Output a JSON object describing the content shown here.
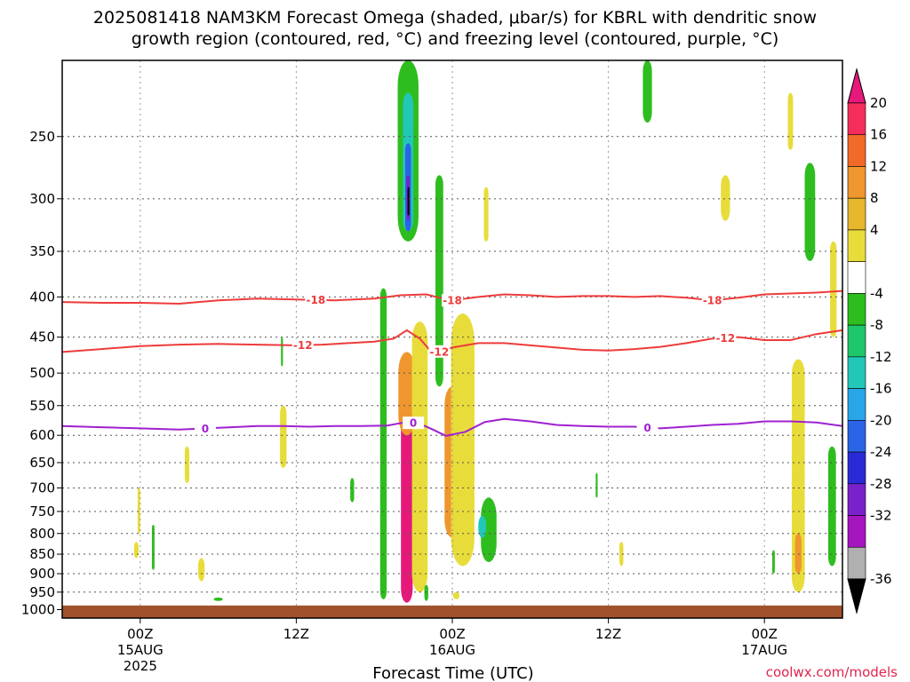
{
  "title_line1": "2025081418 NAM3KM Forecast Omega (shaded, μbar/s) for KBRL with dendritic snow",
  "title_line2": "growth region (contoured, red, °C) and freezing level (contoured, purple, °C)",
  "credit": "coolwx.com/models",
  "chart_data": {
    "type": "heatmap",
    "xlabel": "Forecast Time (UTC)",
    "x_ticks": [
      {
        "hour": 6,
        "lines": [
          "00Z",
          "15AUG",
          "2025"
        ]
      },
      {
        "hour": 18,
        "lines": [
          "12Z"
        ]
      },
      {
        "hour": 30,
        "lines": [
          "00Z",
          "16AUG"
        ]
      },
      {
        "hour": 42,
        "lines": [
          "12Z"
        ]
      },
      {
        "hour": 54,
        "lines": [
          "00Z",
          "17AUG"
        ]
      }
    ],
    "x_range_hours": [
      0,
      60
    ],
    "y_ticks": [
      250,
      300,
      350,
      400,
      450,
      500,
      550,
      600,
      650,
      700,
      750,
      800,
      850,
      900,
      950,
      1000
    ],
    "y_range_mb": [
      200,
      1025
    ],
    "grid": true,
    "colorbar": {
      "labels": [
        "20",
        "16",
        "12",
        "8",
        "4",
        "-4",
        "-8",
        "-12",
        "-16",
        "-20",
        "-24",
        "-28",
        "-32",
        "-36"
      ],
      "colors": [
        "#f52d5b",
        "#f26a29",
        "#f0962e",
        "#e6b62c",
        "#e8dc3a",
        "#ffffff",
        "#2ebd1f",
        "#1fc76b",
        "#22c7b8",
        "#29a6e8",
        "#2b64e6",
        "#2a2bd6",
        "#7a22c9",
        "#a516bf",
        "#b0b0b0"
      ],
      "top_arrow_color": "#e6197a",
      "bottom_arrow_color": "#000000"
    },
    "contours": [
      {
        "label": "-18",
        "color": "#ee3b3b",
        "label_positions_hours": [
          19.5,
          30,
          50
        ],
        "points": [
          [
            0,
            406
          ],
          [
            3,
            407
          ],
          [
            6,
            407
          ],
          [
            9,
            408
          ],
          [
            12,
            404
          ],
          [
            15,
            402
          ],
          [
            18,
            403
          ],
          [
            21,
            404
          ],
          [
            24,
            402
          ],
          [
            26,
            398
          ],
          [
            28,
            397
          ],
          [
            29,
            401
          ],
          [
            30,
            404
          ],
          [
            32,
            400
          ],
          [
            34,
            397
          ],
          [
            36,
            398
          ],
          [
            38,
            400
          ],
          [
            40,
            399
          ],
          [
            42,
            399
          ],
          [
            44,
            400
          ],
          [
            46,
            399
          ],
          [
            48,
            401
          ],
          [
            50,
            404
          ],
          [
            52,
            401
          ],
          [
            54,
            397
          ],
          [
            56,
            396
          ],
          [
            58,
            395
          ],
          [
            60,
            393
          ]
        ]
      },
      {
        "label": "-12",
        "color": "#ee3b3b",
        "label_positions_hours": [
          18.5,
          29,
          51
        ],
        "points": [
          [
            0,
            470
          ],
          [
            3,
            466
          ],
          [
            6,
            462
          ],
          [
            9,
            460
          ],
          [
            12,
            459
          ],
          [
            15,
            460
          ],
          [
            18,
            461
          ],
          [
            20,
            460
          ],
          [
            22,
            458
          ],
          [
            24,
            456
          ],
          [
            25.5,
            452
          ],
          [
            26.5,
            441
          ],
          [
            27.5,
            452
          ],
          [
            28.5,
            472
          ],
          [
            30,
            464
          ],
          [
            32,
            458
          ],
          [
            34,
            458
          ],
          [
            36,
            461
          ],
          [
            38,
            464
          ],
          [
            40,
            467
          ],
          [
            42,
            468
          ],
          [
            44,
            466
          ],
          [
            46,
            463
          ],
          [
            48,
            458
          ],
          [
            50,
            452
          ],
          [
            52,
            450
          ],
          [
            54,
            454
          ],
          [
            56,
            454
          ],
          [
            58,
            446
          ],
          [
            60,
            441
          ]
        ]
      },
      {
        "label": "0",
        "color": "#a020d0",
        "label_positions_hours": [
          11,
          27,
          45
        ],
        "points": [
          [
            0,
            584
          ],
          [
            3,
            586
          ],
          [
            6,
            588
          ],
          [
            9,
            590
          ],
          [
            11,
            588
          ],
          [
            13,
            586
          ],
          [
            15,
            584
          ],
          [
            17,
            584
          ],
          [
            19,
            585
          ],
          [
            21,
            584
          ],
          [
            23,
            584
          ],
          [
            25,
            583
          ],
          [
            26.5,
            577
          ],
          [
            27.5,
            580
          ],
          [
            28.5,
            590
          ],
          [
            29.5,
            601
          ],
          [
            31,
            594
          ],
          [
            32.5,
            577
          ],
          [
            34,
            572
          ],
          [
            36,
            576
          ],
          [
            38,
            582
          ],
          [
            40,
            584
          ],
          [
            42,
            585
          ],
          [
            44,
            585
          ],
          [
            46,
            588
          ],
          [
            48,
            585
          ],
          [
            50,
            582
          ],
          [
            52,
            580
          ],
          [
            54,
            576
          ],
          [
            56,
            576
          ],
          [
            58,
            578
          ],
          [
            60,
            584
          ]
        ]
      }
    ],
    "features": [
      {
        "c": "#e6197a",
        "h": 26.5,
        "dh": 0.9,
        "p0": 490,
        "p1": 980
      },
      {
        "c": "#f0962e",
        "h": 26.5,
        "dh": 1.3,
        "p0": 470,
        "p1": 600
      },
      {
        "c": "#e6197a",
        "h": 30.0,
        "dh": 0.8,
        "p0": 570,
        "p1": 770
      },
      {
        "c": "#f0962e",
        "h": 30.0,
        "dh": 1.2,
        "p0": 520,
        "p1": 810
      },
      {
        "c": "#e8dc3a",
        "h": 30.8,
        "dh": 1.8,
        "p0": 420,
        "p1": 880
      },
      {
        "c": "#e8dc3a",
        "h": 27.5,
        "dh": 1.2,
        "p0": 430,
        "p1": 950
      },
      {
        "c": "#2ebd1f",
        "h": 24.7,
        "dh": 0.5,
        "p0": 390,
        "p1": 970
      },
      {
        "c": "#2ebd1f",
        "h": 32.8,
        "dh": 1.2,
        "p0": 720,
        "p1": 870
      },
      {
        "c": "#22c7b8",
        "h": 32.3,
        "dh": 0.6,
        "p0": 760,
        "p1": 810
      },
      {
        "c": "#2ebd1f",
        "h": 29.0,
        "dh": 0.6,
        "p0": 280,
        "p1": 520
      },
      {
        "c": "#2ebd1f",
        "h": 26.6,
        "dh": 1.6,
        "p0": 200,
        "p1": 340
      },
      {
        "c": "#22c7b8",
        "h": 26.6,
        "dh": 0.8,
        "p0": 220,
        "p1": 330
      },
      {
        "c": "#2b64e6",
        "h": 26.6,
        "dh": 0.45,
        "p0": 255,
        "p1": 330
      },
      {
        "c": "#7a22c9",
        "h": 26.6,
        "dh": 0.25,
        "p0": 280,
        "p1": 320
      },
      {
        "c": "#000000",
        "h": 26.6,
        "dh": 0.08,
        "p0": 290,
        "p1": 315
      },
      {
        "c": "#e8dc3a",
        "h": 32.6,
        "dh": 0.35,
        "p0": 290,
        "p1": 340
      },
      {
        "c": "#2ebd1f",
        "h": 45.0,
        "dh": 0.7,
        "p0": 200,
        "p1": 240
      },
      {
        "c": "#e8dc3a",
        "h": 51.0,
        "dh": 0.7,
        "p0": 280,
        "p1": 320
      },
      {
        "c": "#2ebd1f",
        "h": 57.5,
        "dh": 0.8,
        "p0": 270,
        "p1": 360
      },
      {
        "c": "#e8dc3a",
        "h": 59.3,
        "dh": 0.5,
        "p0": 340,
        "p1": 450
      },
      {
        "c": "#e8dc3a",
        "h": 56.0,
        "dh": 0.4,
        "p0": 220,
        "p1": 260
      },
      {
        "c": "#e8dc3a",
        "h": 56.6,
        "dh": 1.0,
        "p0": 480,
        "p1": 950
      },
      {
        "c": "#f0962e",
        "h": 56.6,
        "dh": 0.5,
        "p0": 800,
        "p1": 900
      },
      {
        "c": "#2ebd1f",
        "h": 59.2,
        "dh": 0.6,
        "p0": 620,
        "p1": 880
      },
      {
        "c": "#2ebd1f",
        "h": 54.7,
        "dh": 0.2,
        "p0": 840,
        "p1": 900
      },
      {
        "c": "#e8dc3a",
        "h": 17.0,
        "dh": 0.5,
        "p0": 550,
        "p1": 660
      },
      {
        "c": "#e8dc3a",
        "h": 9.6,
        "dh": 0.35,
        "p0": 620,
        "p1": 690
      },
      {
        "c": "#e8dc3a",
        "h": 5.9,
        "dh": 0.2,
        "p0": 700,
        "p1": 800
      },
      {
        "c": "#e8dc3a",
        "h": 5.7,
        "dh": 0.35,
        "p0": 820,
        "p1": 860
      },
      {
        "c": "#2ebd1f",
        "h": 7.0,
        "dh": 0.2,
        "p0": 780,
        "p1": 890
      },
      {
        "c": "#e8dc3a",
        "h": 10.7,
        "dh": 0.5,
        "p0": 860,
        "p1": 920
      },
      {
        "c": "#2ebd1f",
        "h": 12.0,
        "dh": 0.7,
        "p0": 965,
        "p1": 975
      },
      {
        "c": "#2ebd1f",
        "h": 16.9,
        "dh": 0.15,
        "p0": 450,
        "p1": 490
      },
      {
        "c": "#2ebd1f",
        "h": 22.3,
        "dh": 0.3,
        "p0": 680,
        "p1": 730
      },
      {
        "c": "#2ebd1f",
        "h": 41.1,
        "dh": 0.15,
        "p0": 670,
        "p1": 720
      },
      {
        "c": "#e8dc3a",
        "h": 43.0,
        "dh": 0.3,
        "p0": 820,
        "p1": 880
      },
      {
        "c": "#e8dc3a",
        "h": 30.3,
        "dh": 0.5,
        "p0": 950,
        "p1": 970
      },
      {
        "c": "#2ebd1f",
        "h": 28.0,
        "dh": 0.3,
        "p0": 930,
        "p1": 975
      }
    ],
    "ground": {
      "color": "#a0522d",
      "pressure_mb": 988
    }
  }
}
